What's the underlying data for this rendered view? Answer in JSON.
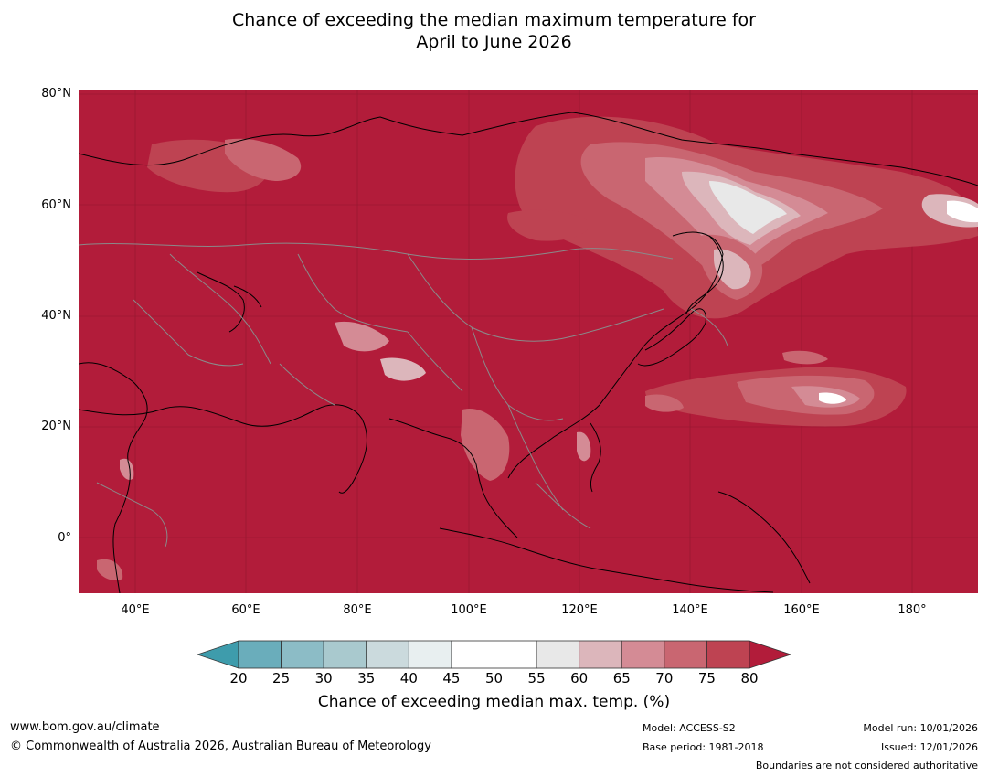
{
  "title": {
    "line1": "Chance of exceeding the median maximum temperature for",
    "line2": "April to June 2026"
  },
  "map": {
    "description_name": "asia-outlook-map",
    "lat_labels": [
      "80°N",
      "60°N",
      "40°N",
      "20°N",
      "0°"
    ],
    "lon_labels": [
      "40°E",
      "60°E",
      "80°E",
      "100°E",
      "120°E",
      "140°E",
      "160°E",
      "180°"
    ],
    "background_color": "#b21c3a"
  },
  "colorbar": {
    "ticks": [
      "20",
      "25",
      "30",
      "35",
      "40",
      "45",
      "50",
      "55",
      "60",
      "65",
      "70",
      "75",
      "80"
    ],
    "colors": [
      "#3e9cac",
      "#6aadbb",
      "#8cbcc6",
      "#a9c9ce",
      "#cbdadd",
      "#e8eff0",
      "#ffffff",
      "#ffffff",
      "#e8e8e8",
      "#dcb6bb",
      "#d48b95",
      "#c96671",
      "#be4352",
      "#b21c3a"
    ],
    "label": "Chance of exceeding median max. temp. (%)"
  },
  "footer": {
    "website": "www.bom.gov.au/climate",
    "copyright": "© Commonwealth of Australia 2026, Australian Bureau of Meteorology",
    "model": "Model: ACCESS-S2",
    "base_period": "Base period: 1981-2018",
    "model_run": "Model run: 10/01/2026",
    "issued": "Issued: 12/01/2026",
    "disclaimer": "Boundaries are not considered authoritative"
  }
}
